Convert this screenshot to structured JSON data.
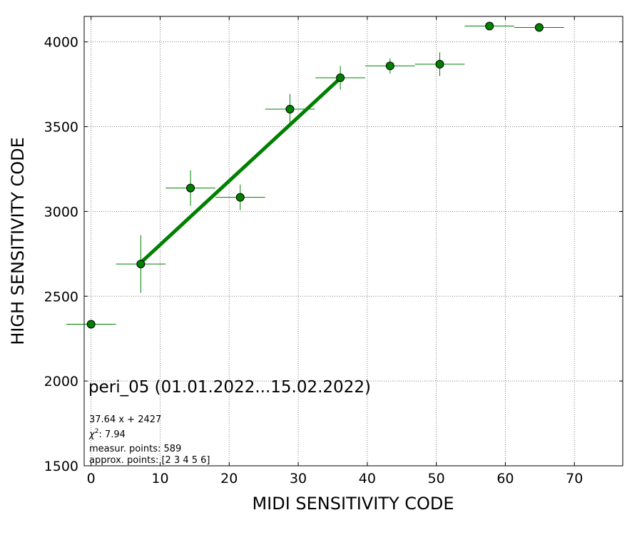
{
  "chart_data": {
    "type": "scatter",
    "xlabel": "MIDI SENSITIVITY CODE",
    "ylabel": "HIGH SENSITIVITY CODE",
    "xlim": [
      -1,
      77
    ],
    "ylim": [
      1500,
      4150
    ],
    "x_ticks": [
      0,
      10,
      20,
      30,
      40,
      50,
      60,
      70
    ],
    "y_ticks": [
      1500,
      2000,
      2500,
      3000,
      3500,
      4000
    ],
    "grid": true,
    "colors": {
      "marker": "#008000",
      "fit_line": "#008000",
      "marker_edge": "#000000",
      "grid": "#808080"
    },
    "points": [
      {
        "x": 0.0,
        "y": 2335,
        "xerr": 3.6,
        "yerr": 10
      },
      {
        "x": 7.2,
        "y": 2690,
        "xerr": 3.6,
        "yerr": 170
      },
      {
        "x": 14.4,
        "y": 3138,
        "xerr": 3.6,
        "yerr": 105
      },
      {
        "x": 21.6,
        "y": 3083,
        "xerr": 3.6,
        "yerr": 75
      },
      {
        "x": 28.8,
        "y": 3603,
        "xerr": 3.6,
        "yerr": 90
      },
      {
        "x": 36.1,
        "y": 3788,
        "xerr": 3.6,
        "yerr": 70
      },
      {
        "x": 43.3,
        "y": 3858,
        "xerr": 3.6,
        "yerr": 45
      },
      {
        "x": 50.5,
        "y": 3868,
        "xerr": 3.6,
        "yerr": 70
      },
      {
        "x": 57.7,
        "y": 4093,
        "xerr": 3.6,
        "yerr": 0
      },
      {
        "x": 64.9,
        "y": 4085,
        "xerr": 3.6,
        "yerr": 0
      }
    ],
    "fit": {
      "slope": 37.64,
      "intercept": 2427,
      "x_range": [
        7.2,
        36.1
      ]
    },
    "annotations": {
      "title": "peri_05 (01.01.2022...15.02.2022)",
      "equation": "37.64 x + 2427",
      "chi2_label": "χ",
      "chi2_sup": "2",
      "chi2_value": ": 7.94",
      "measur_points": "measur. points: 589",
      "approx_points": "approx. points: [2 3 4 5 6]"
    }
  }
}
